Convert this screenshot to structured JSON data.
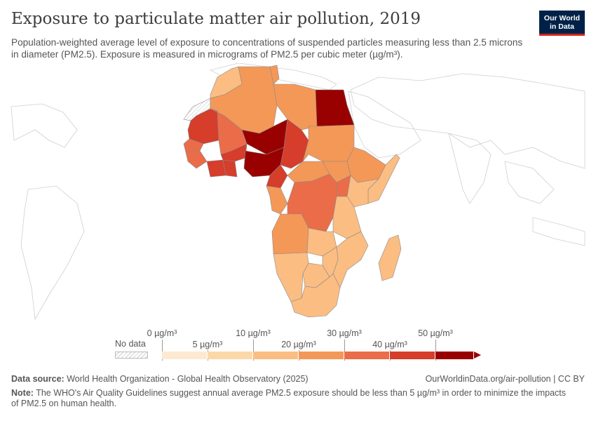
{
  "header": {
    "title": "Exposure to particulate matter air pollution, 2019",
    "subtitle": "Population-weighted average level of exposure to concentrations of suspended particles measuring less than 2.5 microns in diameter (PM2.5). Exposure is measured in micrograms of PM2.5 per cubic meter (µg/m³).",
    "logo_line1": "Our World",
    "logo_line2": "in Data"
  },
  "legend": {
    "no_data_label": "No data",
    "upper_ticks": [
      "0 µg/m³",
      "10 µg/m³",
      "30 µg/m³",
      "50 µg/m³"
    ],
    "lower_ticks": [
      "5 µg/m³",
      "20 µg/m³",
      "40 µg/m³"
    ],
    "bins": [
      {
        "range": "0-5",
        "color": "#fde9d2"
      },
      {
        "range": "5-10",
        "color": "#fcd8a9"
      },
      {
        "range": "10-20",
        "color": "#fbbd82"
      },
      {
        "range": "20-30",
        "color": "#f49858"
      },
      {
        "range": "30-40",
        "color": "#eb6c48"
      },
      {
        "range": "40-50",
        "color": "#d63d2a"
      },
      {
        "range": "50+",
        "color": "#990000"
      }
    ]
  },
  "map_data": {
    "region": "Africa",
    "year": 2019,
    "countries": [
      {
        "name": "Morocco",
        "bin": "10-20"
      },
      {
        "name": "Algeria",
        "bin": "20-30"
      },
      {
        "name": "Tunisia",
        "bin": "20-30"
      },
      {
        "name": "Libya",
        "bin": "20-30"
      },
      {
        "name": "Egypt",
        "bin": "50+"
      },
      {
        "name": "Mauritania",
        "bin": "40-50"
      },
      {
        "name": "Mali",
        "bin": "30-40"
      },
      {
        "name": "Niger",
        "bin": "50+"
      },
      {
        "name": "Chad",
        "bin": "40-50"
      },
      {
        "name": "Sudan",
        "bin": "20-30"
      },
      {
        "name": "Senegal",
        "bin": "30-40"
      },
      {
        "name": "Guinea",
        "bin": "30-40"
      },
      {
        "name": "Burkina Faso",
        "bin": "40-50"
      },
      {
        "name": "Ivory Coast",
        "bin": "40-50"
      },
      {
        "name": "Ghana",
        "bin": "40-50"
      },
      {
        "name": "Nigeria",
        "bin": "50+"
      },
      {
        "name": "Cameroon",
        "bin": "40-50"
      },
      {
        "name": "Central African Republic",
        "bin": "20-30"
      },
      {
        "name": "South Sudan",
        "bin": "20-30"
      },
      {
        "name": "Ethiopia",
        "bin": "20-30"
      },
      {
        "name": "Somalia",
        "bin": "10-20"
      },
      {
        "name": "Kenya",
        "bin": "10-20"
      },
      {
        "name": "Uganda",
        "bin": "30-40"
      },
      {
        "name": "DR Congo",
        "bin": "30-40"
      },
      {
        "name": "Congo",
        "bin": "30-40"
      },
      {
        "name": "Gabon",
        "bin": "20-30"
      },
      {
        "name": "Angola",
        "bin": "20-30"
      },
      {
        "name": "Tanzania",
        "bin": "10-20"
      },
      {
        "name": "Zambia",
        "bin": "10-20"
      },
      {
        "name": "Mozambique",
        "bin": "10-20"
      },
      {
        "name": "Namibia",
        "bin": "10-20"
      },
      {
        "name": "Botswana",
        "bin": "10-20"
      },
      {
        "name": "Zimbabwe",
        "bin": "10-20"
      },
      {
        "name": "South Africa",
        "bin": "10-20"
      },
      {
        "name": "Madagascar",
        "bin": "10-20"
      },
      {
        "name": "Western Sahara",
        "bin": "no-data"
      }
    ]
  },
  "footer": {
    "source_label": "Data source:",
    "source_text": "World Health Organization - Global Health Observatory (2025)",
    "credit": "OurWorldinData.org/air-pollution | CC BY",
    "note_label": "Note:",
    "note_text": "The WHO's Air Quality Guidelines suggest annual average PM2.5 exposure should be less than 5 µg/m³ in order to minimize the impacts of PM2.5 on human health."
  }
}
